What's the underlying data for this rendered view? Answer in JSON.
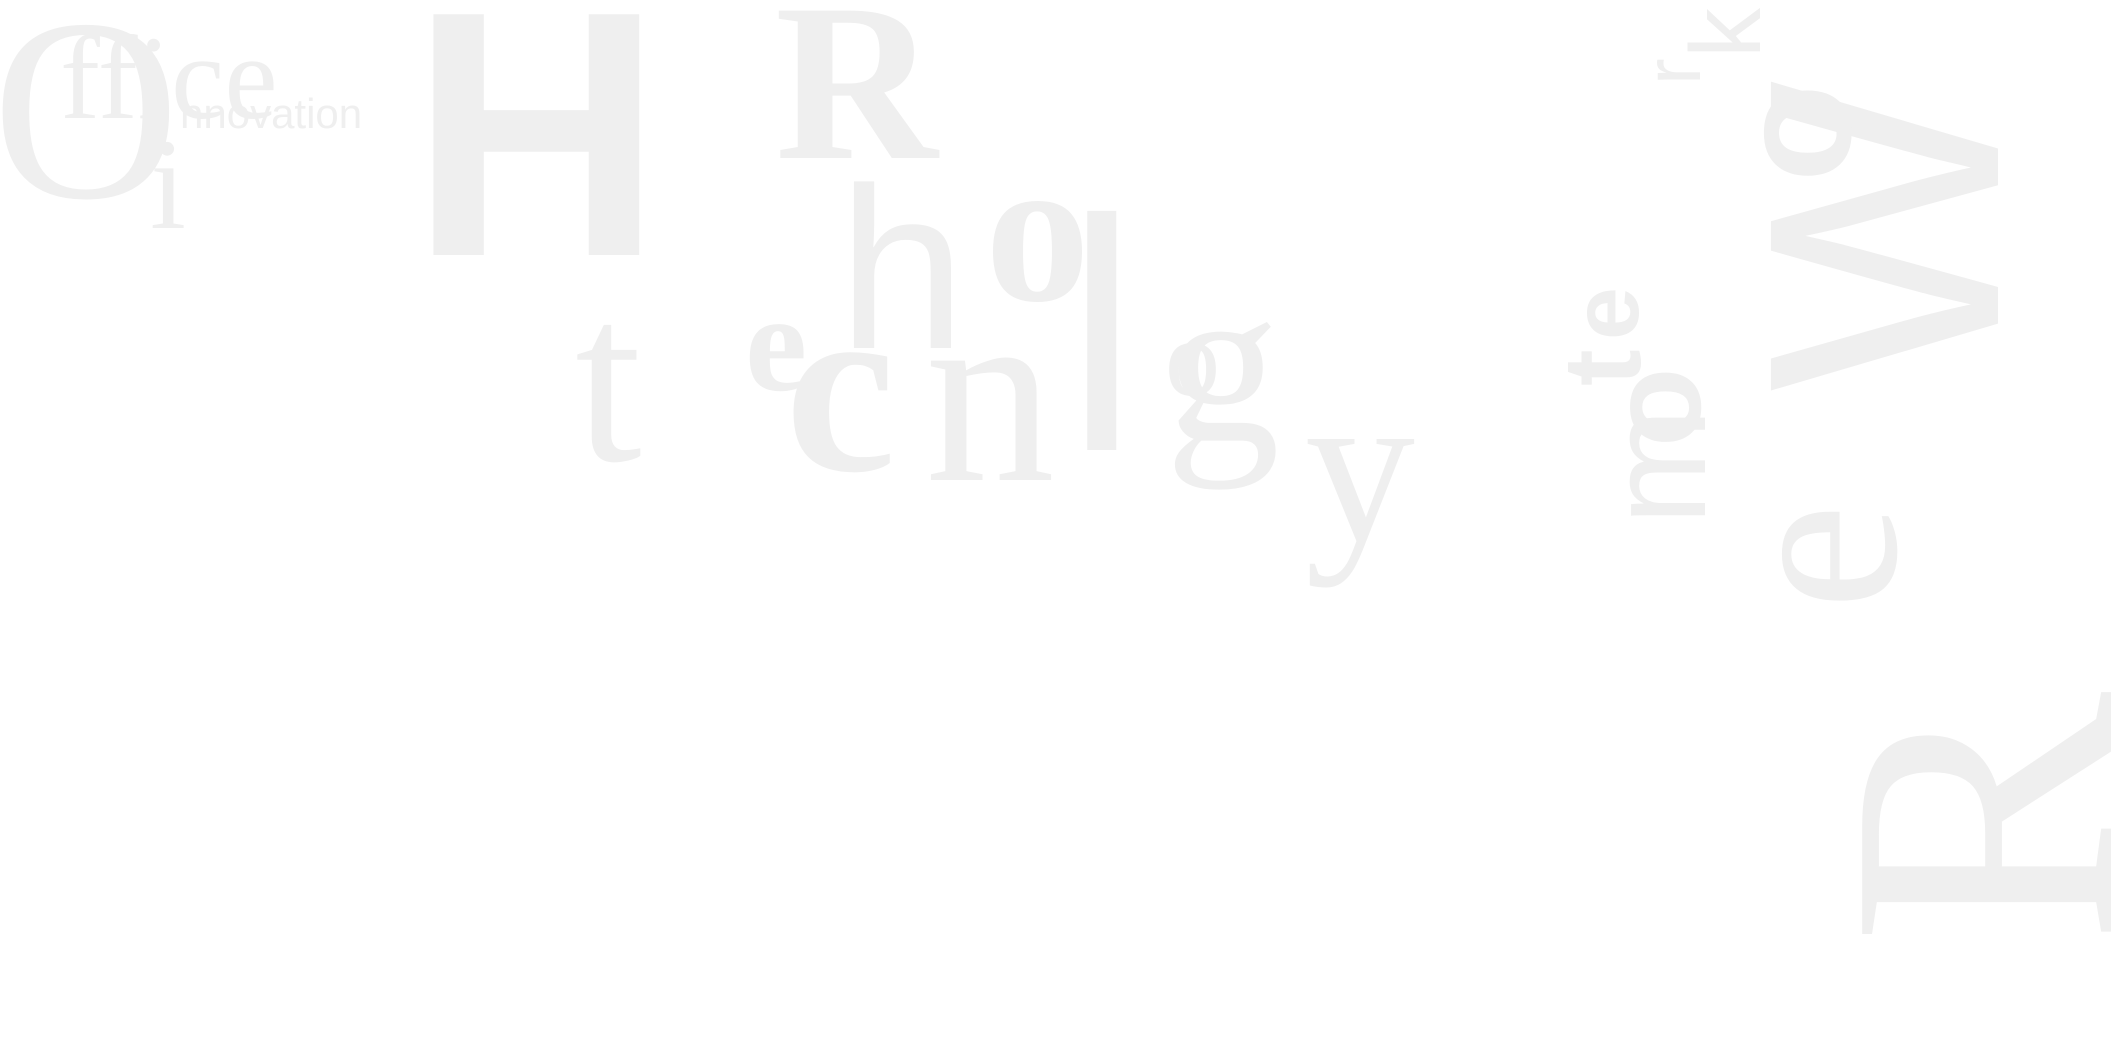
{
  "office_innovation": {
    "parts": [
      "O",
      "ffice",
      "i",
      "nnovation"
    ]
  },
  "hr_technology": {
    "parts": [
      "H",
      "R",
      "t",
      "e",
      "c",
      "h",
      "n",
      "o",
      "l",
      "o",
      "g",
      "y"
    ]
  },
  "remote_work": {
    "parts": [
      "R",
      "e",
      "m",
      "o",
      "t",
      "e",
      "W",
      "o",
      "r",
      "k"
    ]
  }
}
